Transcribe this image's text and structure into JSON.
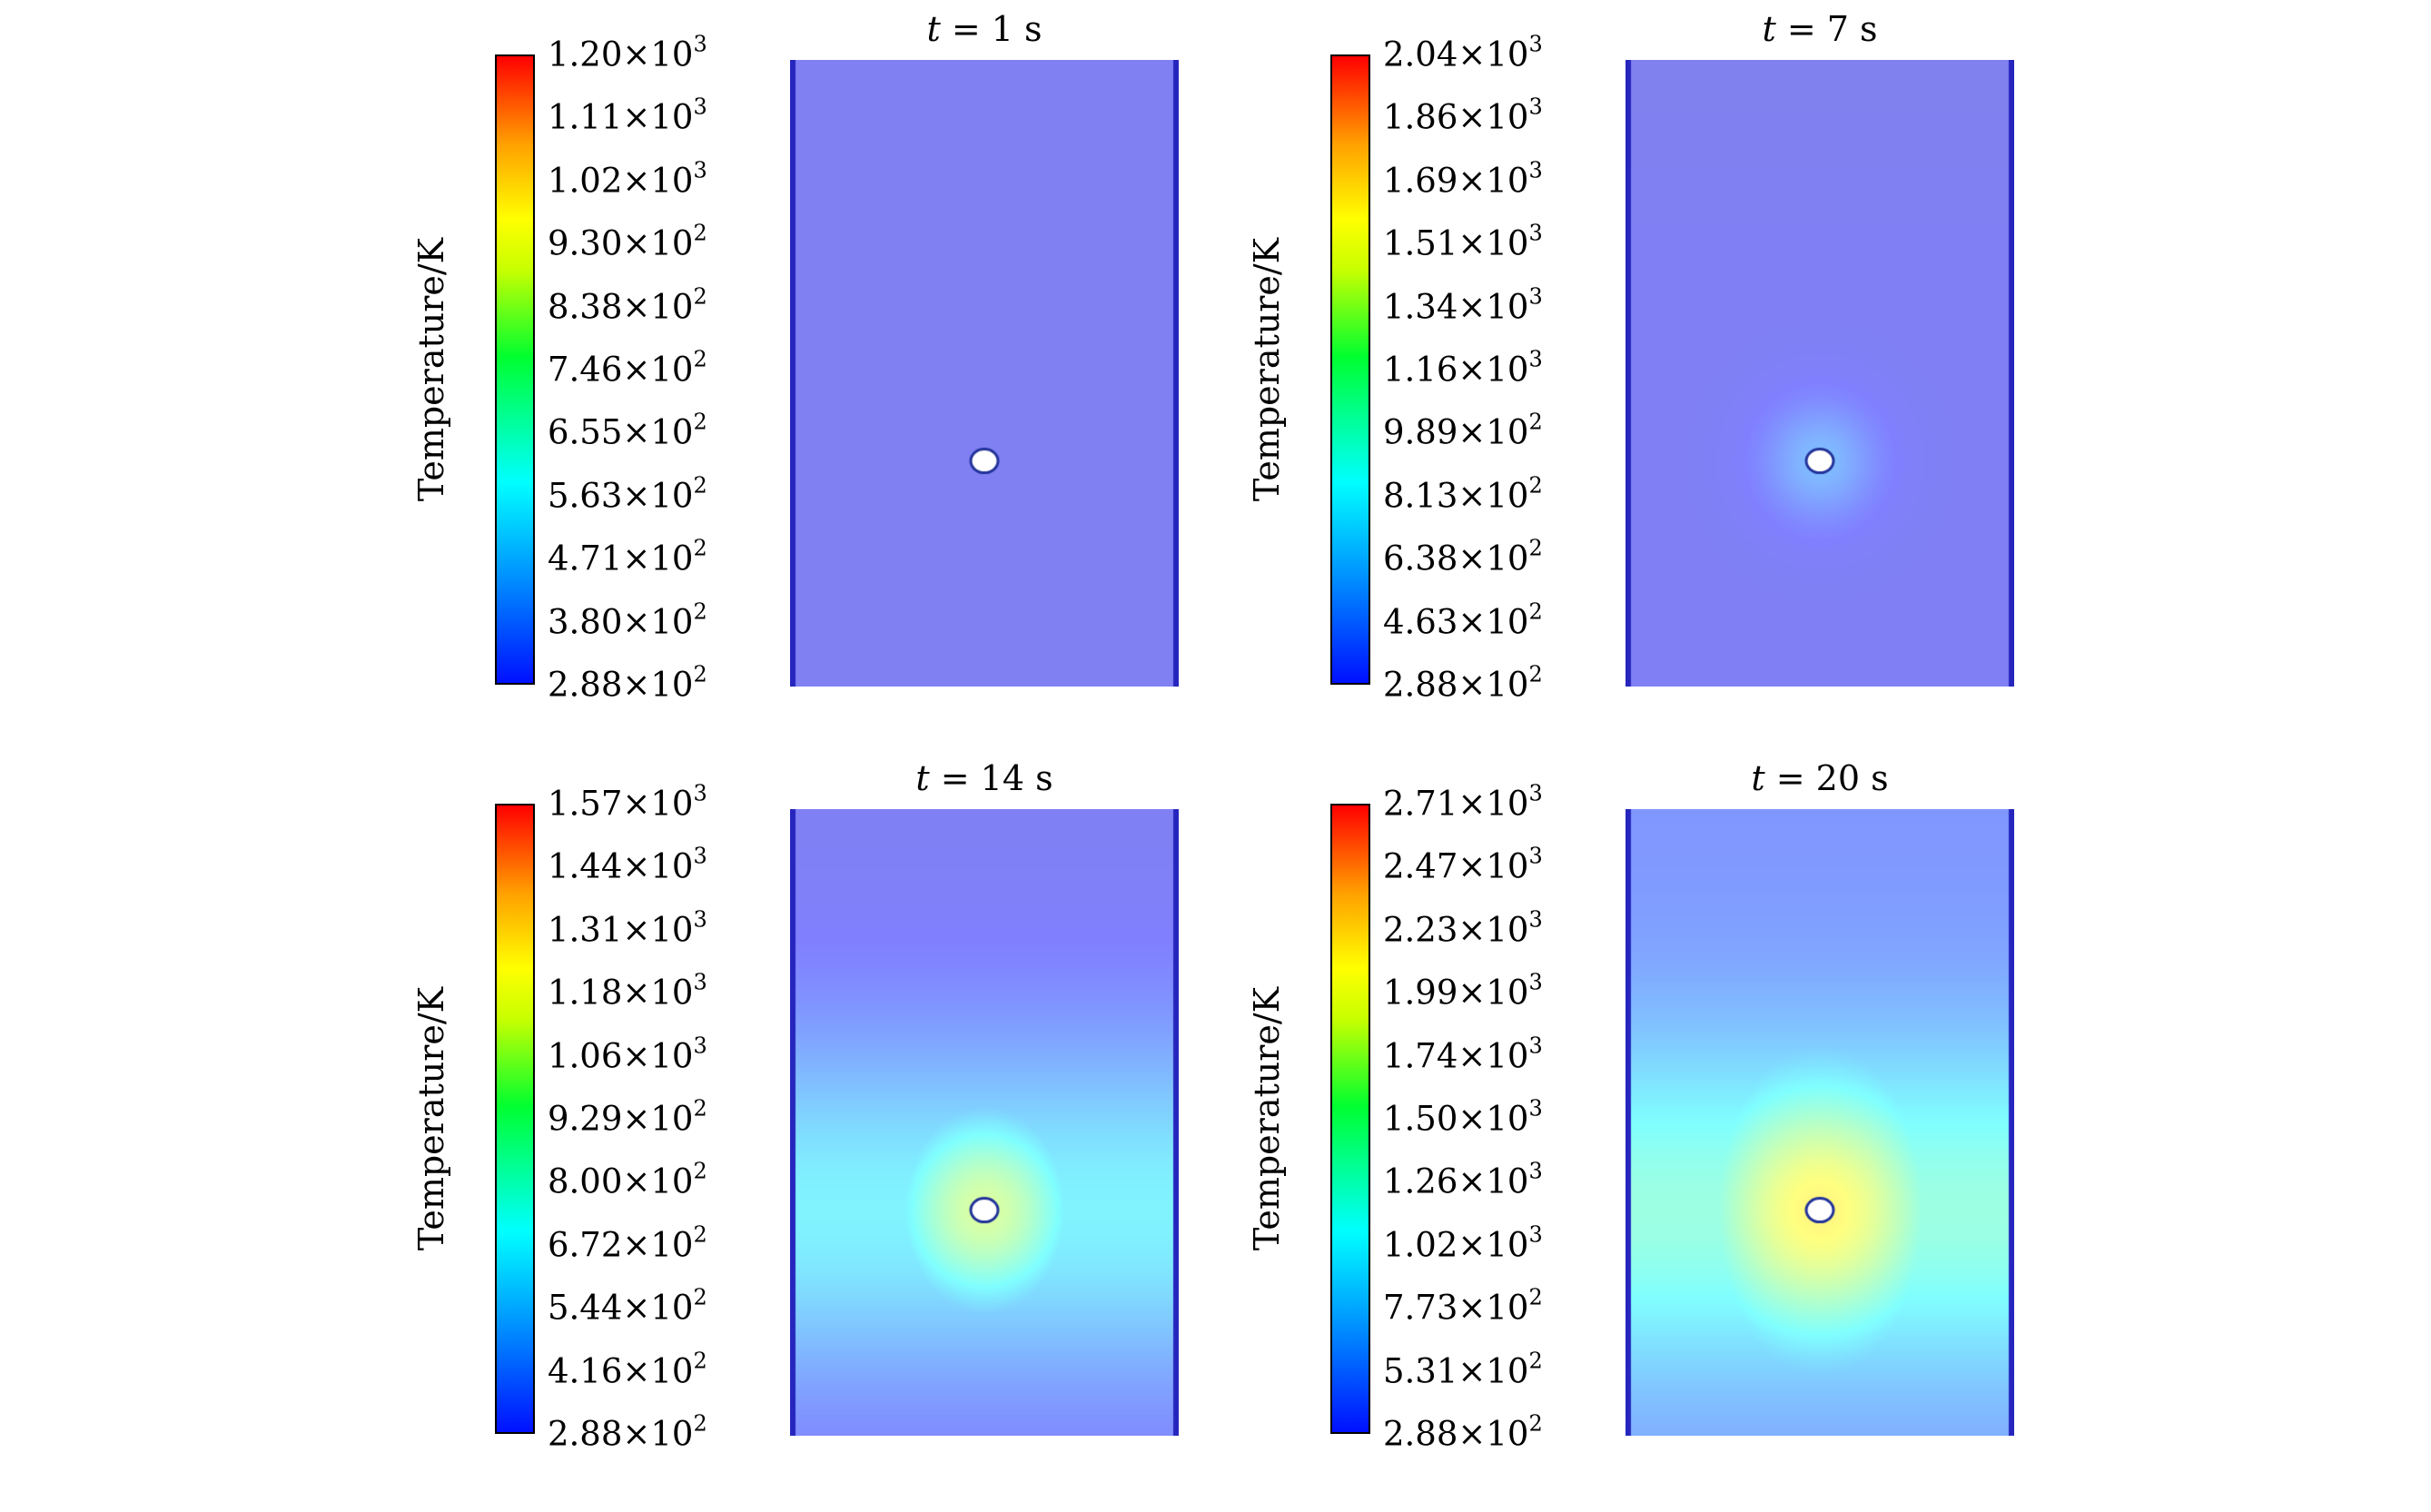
{
  "chart_data": [
    {
      "type": "heatmap",
      "title": "t = 1 s",
      "title_var": "t",
      "title_rest": "= 1 s",
      "colorbar_label": "Temperature/K",
      "colorbar_ticks": [
        "2.88×10^2",
        "3.80×10^2",
        "4.71×10^2",
        "5.63×10^2",
        "6.55×10^2",
        "7.46×10^2",
        "8.38×10^2",
        "9.30×10^2",
        "1.02×10^3",
        "1.11×10^3",
        "1.20×10^3"
      ],
      "colorbar_range": [
        288,
        1200
      ],
      "colormap": "jet",
      "field": {
        "background_K": 380,
        "hot_center_K": 380,
        "hot_region_size": 0,
        "max_near_center_K": 400
      }
    },
    {
      "type": "heatmap",
      "title": "t = 7 s",
      "title_var": "t",
      "title_rest": "= 7 s",
      "colorbar_label": "Temperature/K",
      "colorbar_ticks": [
        "2.88×10^2",
        "4.63×10^2",
        "6.38×10^2",
        "8.13×10^2",
        "9.89×10^2",
        "1.16×10^3",
        "1.34×10^3",
        "1.51×10^3",
        "1.69×10^3",
        "1.86×10^3",
        "2.04×10^3"
      ],
      "colorbar_range": [
        288,
        2040
      ],
      "colormap": "jet",
      "field": {
        "background_K": 470,
        "hot_center_K": 720,
        "hot_region_size": 0.3,
        "max_near_center_K": 760
      }
    },
    {
      "type": "heatmap",
      "title": "t = 14 s",
      "title_var": "t",
      "title_rest": "= 14 s",
      "colorbar_label": "Temperature/K",
      "colorbar_ticks": [
        "2.88×10^2",
        "4.16×10^2",
        "5.44×10^2",
        "6.72×10^2",
        "8.00×10^2",
        "9.29×10^2",
        "1.06×10^3",
        "1.18×10^3",
        "1.31×10^3",
        "1.44×10^3",
        "1.57×10^3"
      ],
      "colorbar_range": [
        288,
        1570
      ],
      "colormap": "jet",
      "field": {
        "background_K": 420,
        "hot_center_K": 1000,
        "hot_region_size": 0.55,
        "max_near_center_K": 1020
      }
    },
    {
      "type": "heatmap",
      "title": "t = 20 s",
      "title_var": "t",
      "title_rest": "= 20 s",
      "colorbar_label": "Temperature/K",
      "colorbar_ticks": [
        "2.88×10^2",
        "5.31×10^2",
        "7.73×10^2",
        "1.02×10^3",
        "1.26×10^3",
        "1.50×10^3",
        "1.74×10^3",
        "1.99×10^3",
        "2.23×10^3",
        "2.47×10^3",
        "2.71×10^3"
      ],
      "colorbar_range": [
        288,
        2710
      ],
      "colormap": "jet",
      "field": {
        "background_K": 700,
        "hot_center_K": 1850,
        "hot_region_size": 0.7,
        "max_near_center_K": 1900
      }
    }
  ]
}
